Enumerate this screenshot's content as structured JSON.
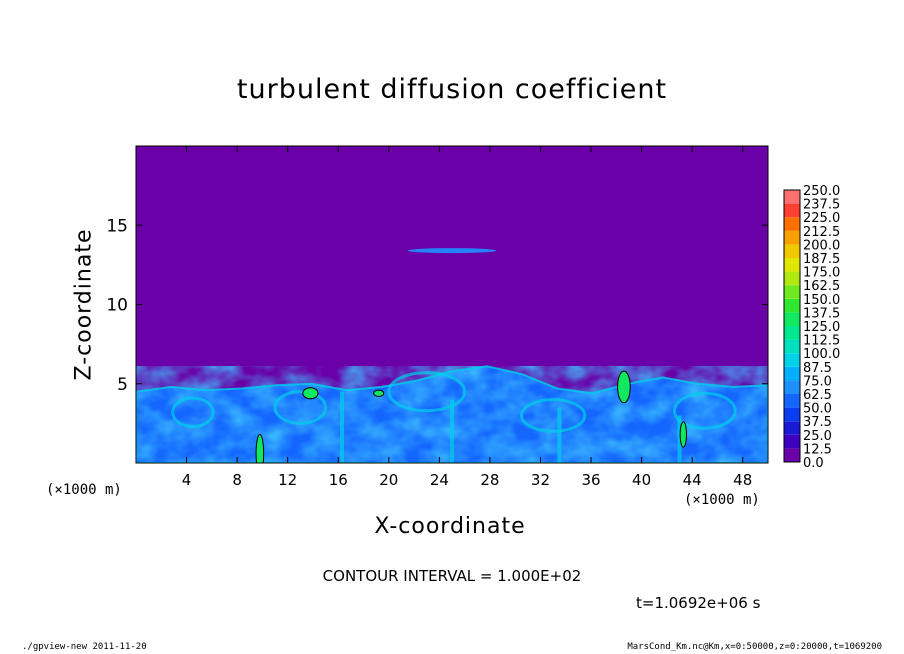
{
  "chart_data": {
    "type": "heatmap",
    "title": "turbulent diffusion coefficient",
    "xlabel": "X-coordinate",
    "ylabel": "Z-coordinate",
    "x_scale_note": "(×1000 m)",
    "y_scale_note": "(×1000 m)",
    "xlim": [
      0,
      50
    ],
    "ylim": [
      0,
      20
    ],
    "x_ticks": [
      4,
      8,
      12,
      16,
      20,
      24,
      28,
      32,
      36,
      40,
      44,
      48
    ],
    "y_ticks": [
      5,
      10,
      15
    ],
    "colorbar_levels": [
      "0.0",
      "12.5",
      "25.0",
      "37.5",
      "50.0",
      "62.5",
      "75.0",
      "87.5",
      "100.0",
      "112.5",
      "125.0",
      "137.5",
      "150.0",
      "162.5",
      "175.0",
      "187.5",
      "200.0",
      "212.5",
      "225.0",
      "237.5",
      "250.0"
    ],
    "colorbar_colors": [
      "#6a00a8",
      "#3d00bf",
      "#1a1ad6",
      "#0a3cf0",
      "#1466ff",
      "#1e90ff",
      "#00b0ff",
      "#00d0e8",
      "#00e0c0",
      "#00e890",
      "#10e860",
      "#30e830",
      "#70e820",
      "#b0e810",
      "#e0e800",
      "#f0c800",
      "#f8a000",
      "#ff7000",
      "#ff4030",
      "#ff7070"
    ],
    "background_value": "0.0",
    "boundary_layer_top_km": [
      4.5,
      4.8,
      4.6,
      4.7,
      4.9,
      5.0,
      4.6,
      4.8,
      5.2,
      5.8,
      6.1,
      5.6,
      4.7,
      4.4,
      5.0,
      5.4,
      5.0,
      4.8,
      4.9
    ]
  },
  "contour_text": "CONTOUR INTERVAL = 1.000E+02",
  "time_text": "t=1.0692e+06 s",
  "footer_left": "./gpview-new  2011-11-20",
  "footer_right": "MarsCond_Km.nc@Km,x=0:50000,z=0:20000,t=1069200"
}
